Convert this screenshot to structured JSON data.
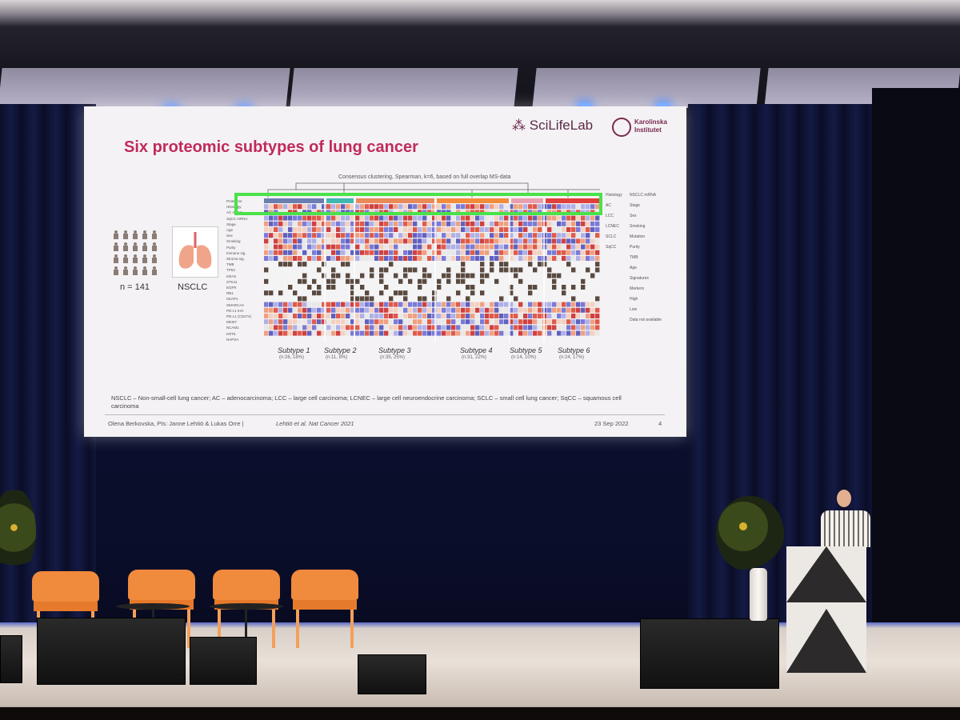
{
  "slide": {
    "title": "Six proteomic subtypes of lung cancer",
    "logo_scilifelab": "SciLifeLab",
    "logo_karolinska": "Karolinska Institutet",
    "clustering_caption": "Consensus clustering, Spearman, k=6, based on full overlap MS-data",
    "cohort_size": "n = 141",
    "cohort_type": "NSCLC",
    "row_labels": [
      "Proteome",
      "Histology",
      "AC mRNA",
      "SqCC mRNA",
      "Stage",
      "Age",
      "Sex",
      "Smoking",
      "Purity",
      "Immune sig.",
      "Stroma sig.",
      "TMB",
      "TP53",
      "KRAS",
      "STK11",
      "EGFR",
      "RB1",
      "KEAP1",
      "SMARCA4",
      "PD-L1 IHC",
      "PD-L1 (CD274)",
      "MKI67",
      "NCAM1",
      "KRT5",
      "NAPSA"
    ],
    "legend_labels": [
      "Histology",
      "AC",
      "LCC",
      "LCNEC",
      "SCLC",
      "SqCC",
      "NSCLC mRNA",
      "Stage",
      "Sex",
      "Smoking",
      "Mutation",
      "Purity",
      "TMB",
      "Age",
      "Signatures",
      "Markers",
      "High",
      "Low",
      "Data not available"
    ],
    "subtypes": [
      {
        "label": "Subtype 1",
        "count": "(n:26, 18%)"
      },
      {
        "label": "Subtype 2",
        "count": "(n:11, 8%)"
      },
      {
        "label": "Subtype 3",
        "count": "(n:35, 25%)"
      },
      {
        "label": "Subtype 4",
        "count": "(n:31, 22%)"
      },
      {
        "label": "Subtype 5",
        "count": "(n:14, 10%)"
      },
      {
        "label": "Subtype 6",
        "count": "(n:24, 17%)"
      }
    ],
    "footnote": "NSCLC – Non-small-cell lung cancer; AC – adenocarcinoma; LCC – large cell carcinoma; LCNEC – large cell neuroendocrine carcinoma; SCLC – small cell lung cancer; SqCC – squamous cell carcinoma",
    "footer_author": "Olena Berkovska, PIs: Janne Lehtiö & Lukas Orre |",
    "footer_reference": "Lehtiö et al. Nat Cancer 2021",
    "footer_date": "23 Sep 2022",
    "footer_page": "4"
  },
  "colors": {
    "title": "#c02a5c",
    "highlight_box": "#49e24a",
    "chairs": "#f08a3c",
    "curtain": "#0c0f2a",
    "stage_light": "#5a6cc8"
  }
}
